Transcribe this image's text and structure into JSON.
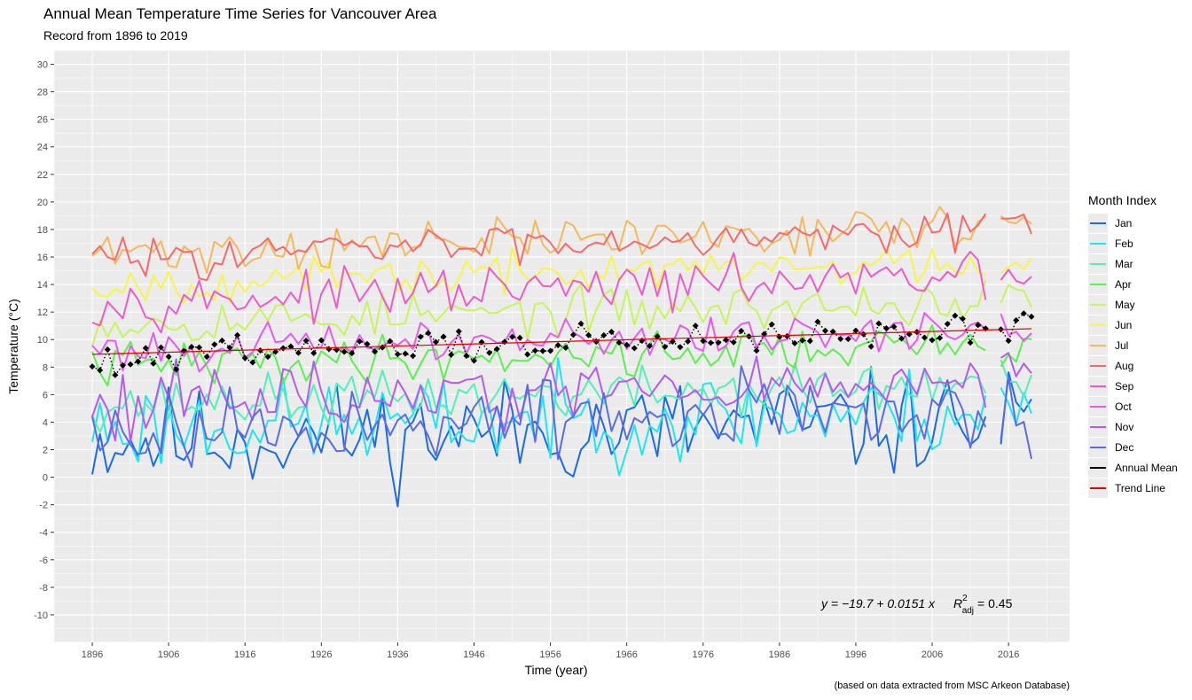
{
  "chart_data": {
    "type": "line",
    "title": "Annual Mean Temperature Time Series for Vancouver Area",
    "subtitle": "Record from 1896 to 2019",
    "xlabel": "Time (year)",
    "ylabel": "Temperature (°C)",
    "caption": "(based on data extracted from MSC Arkeon Database)",
    "xlim": [
      1891,
      2024
    ],
    "ylim": [
      -12,
      31
    ],
    "xticks": [
      1896,
      1906,
      1916,
      1926,
      1936,
      1946,
      1956,
      1966,
      1976,
      1986,
      1996,
      2006,
      2016
    ],
    "yticks": [
      -10,
      -8,
      -6,
      -4,
      -2,
      0,
      2,
      4,
      6,
      8,
      10,
      12,
      14,
      16,
      18,
      20,
      22,
      24,
      26,
      28,
      30
    ],
    "grid": true,
    "legend_title": "Month Index",
    "legend_position": "right",
    "start_year": 1896,
    "end_year": 2019,
    "gap_years": [
      2014
    ],
    "series": [
      {
        "name": "Jan",
        "color": "#1a6be6",
        "base": 2.6,
        "amp": 1.9,
        "seed": 11,
        "trend": 0.012
      },
      {
        "name": "Feb",
        "color": "#1ee6f0",
        "base": 3.6,
        "amp": 1.6,
        "seed": 23,
        "trend": 0.01
      },
      {
        "name": "Mar",
        "color": "#52f0b8",
        "base": 5.3,
        "amp": 0.9,
        "seed": 37,
        "trend": 0.012
      },
      {
        "name": "Apr",
        "color": "#5af04e",
        "base": 8.1,
        "amp": 0.8,
        "seed": 41,
        "trend": 0.013
      },
      {
        "name": "May",
        "color": "#c6f55a",
        "base": 11.2,
        "amp": 0.8,
        "seed": 53,
        "trend": 0.013
      },
      {
        "name": "Jun",
        "color": "#f5f54a",
        "base": 14.0,
        "amp": 0.7,
        "seed": 67,
        "trend": 0.014
      },
      {
        "name": "Jul",
        "color": "#f5b85a",
        "base": 16.2,
        "amp": 0.8,
        "seed": 71,
        "trend": 0.018
      },
      {
        "name": "Aug",
        "color": "#f56b6b",
        "base": 15.9,
        "amp": 0.7,
        "seed": 83,
        "trend": 0.02
      },
      {
        "name": "Sep",
        "color": "#f05ac8",
        "base": 12.7,
        "amp": 0.8,
        "seed": 97,
        "trend": 0.016
      },
      {
        "name": "Oct",
        "color": "#e65af0",
        "base": 9.3,
        "amp": 0.7,
        "seed": 101,
        "trend": 0.012
      },
      {
        "name": "Nov",
        "color": "#b45af0",
        "base": 5.6,
        "amp": 1.2,
        "seed": 113,
        "trend": 0.01
      },
      {
        "name": "Dec",
        "color": "#5a6be6",
        "base": 3.4,
        "amp": 1.4,
        "seed": 127,
        "trend": 0.012
      }
    ],
    "annual_mean": {
      "name": "Annual Mean",
      "color": "#000000",
      "base": 8.9,
      "amp": 0.55,
      "seed": 199,
      "trend": 0.0151
    },
    "trend_line": {
      "name": "Trend Line",
      "color": "#e60000",
      "intercept": -19.7,
      "slope": 0.0151
    },
    "equation": "y = −19.7 + 0.0151 x",
    "r2_symbol": "R",
    "r2_sup": "2",
    "r2_sub": "adj",
    "r2_value": "= 0.45"
  }
}
